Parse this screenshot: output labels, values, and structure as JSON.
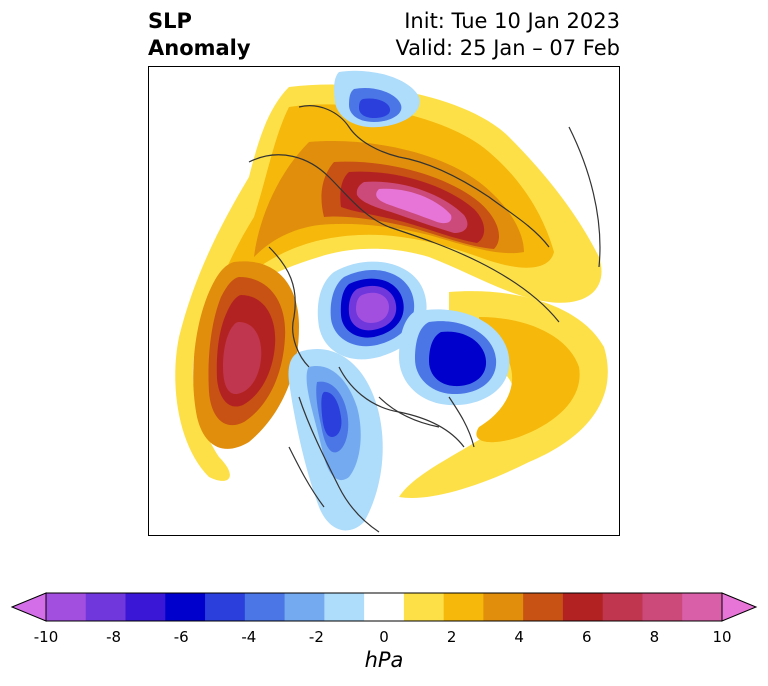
{
  "header": {
    "title_line1": "SLP",
    "title_line2": "Anomaly",
    "init": "Init: Tue 10 Jan 2023",
    "valid": "Valid: 25 Jan – 07 Feb"
  },
  "colorbar": {
    "units": "hPa",
    "tick_labels": [
      "-10",
      "-8",
      "-6",
      "-4",
      "-2",
      "0",
      "2",
      "4",
      "6",
      "8",
      "10"
    ],
    "bin_colors": [
      "#d36ee8",
      "#a24fe0",
      "#6f37dc",
      "#3a16d6",
      "#0000cd",
      "#2a3fdc",
      "#4b76e6",
      "#74aaf0",
      "#aedcfb",
      "#ffffff",
      "#fde047",
      "#f5b80b",
      "#e08e0b",
      "#c85114",
      "#b32222",
      "#c0364e",
      "#cc4a7a",
      "#d95fa8",
      "#e675d7"
    ],
    "extend": "both"
  },
  "map": {
    "projection": "north-polar-stereographic",
    "anomalies": [
      {
        "sign": "positive",
        "peak_hpa": 10,
        "region": "Eurasia / Siberia"
      },
      {
        "sign": "positive",
        "peak_hpa": 8,
        "region": "North Pacific"
      },
      {
        "sign": "negative",
        "peak_hpa": -10,
        "region": "Arctic Ocean"
      },
      {
        "sign": "negative",
        "peak_hpa": -6,
        "region": "Baffin Bay / Greenland"
      },
      {
        "sign": "negative",
        "peak_hpa": -4,
        "region": "Western Canada / USA"
      },
      {
        "sign": "negative",
        "peak_hpa": -4,
        "region": "Scandinavia"
      },
      {
        "sign": "positive",
        "peak_hpa": 4,
        "region": "North Atlantic"
      }
    ]
  }
}
